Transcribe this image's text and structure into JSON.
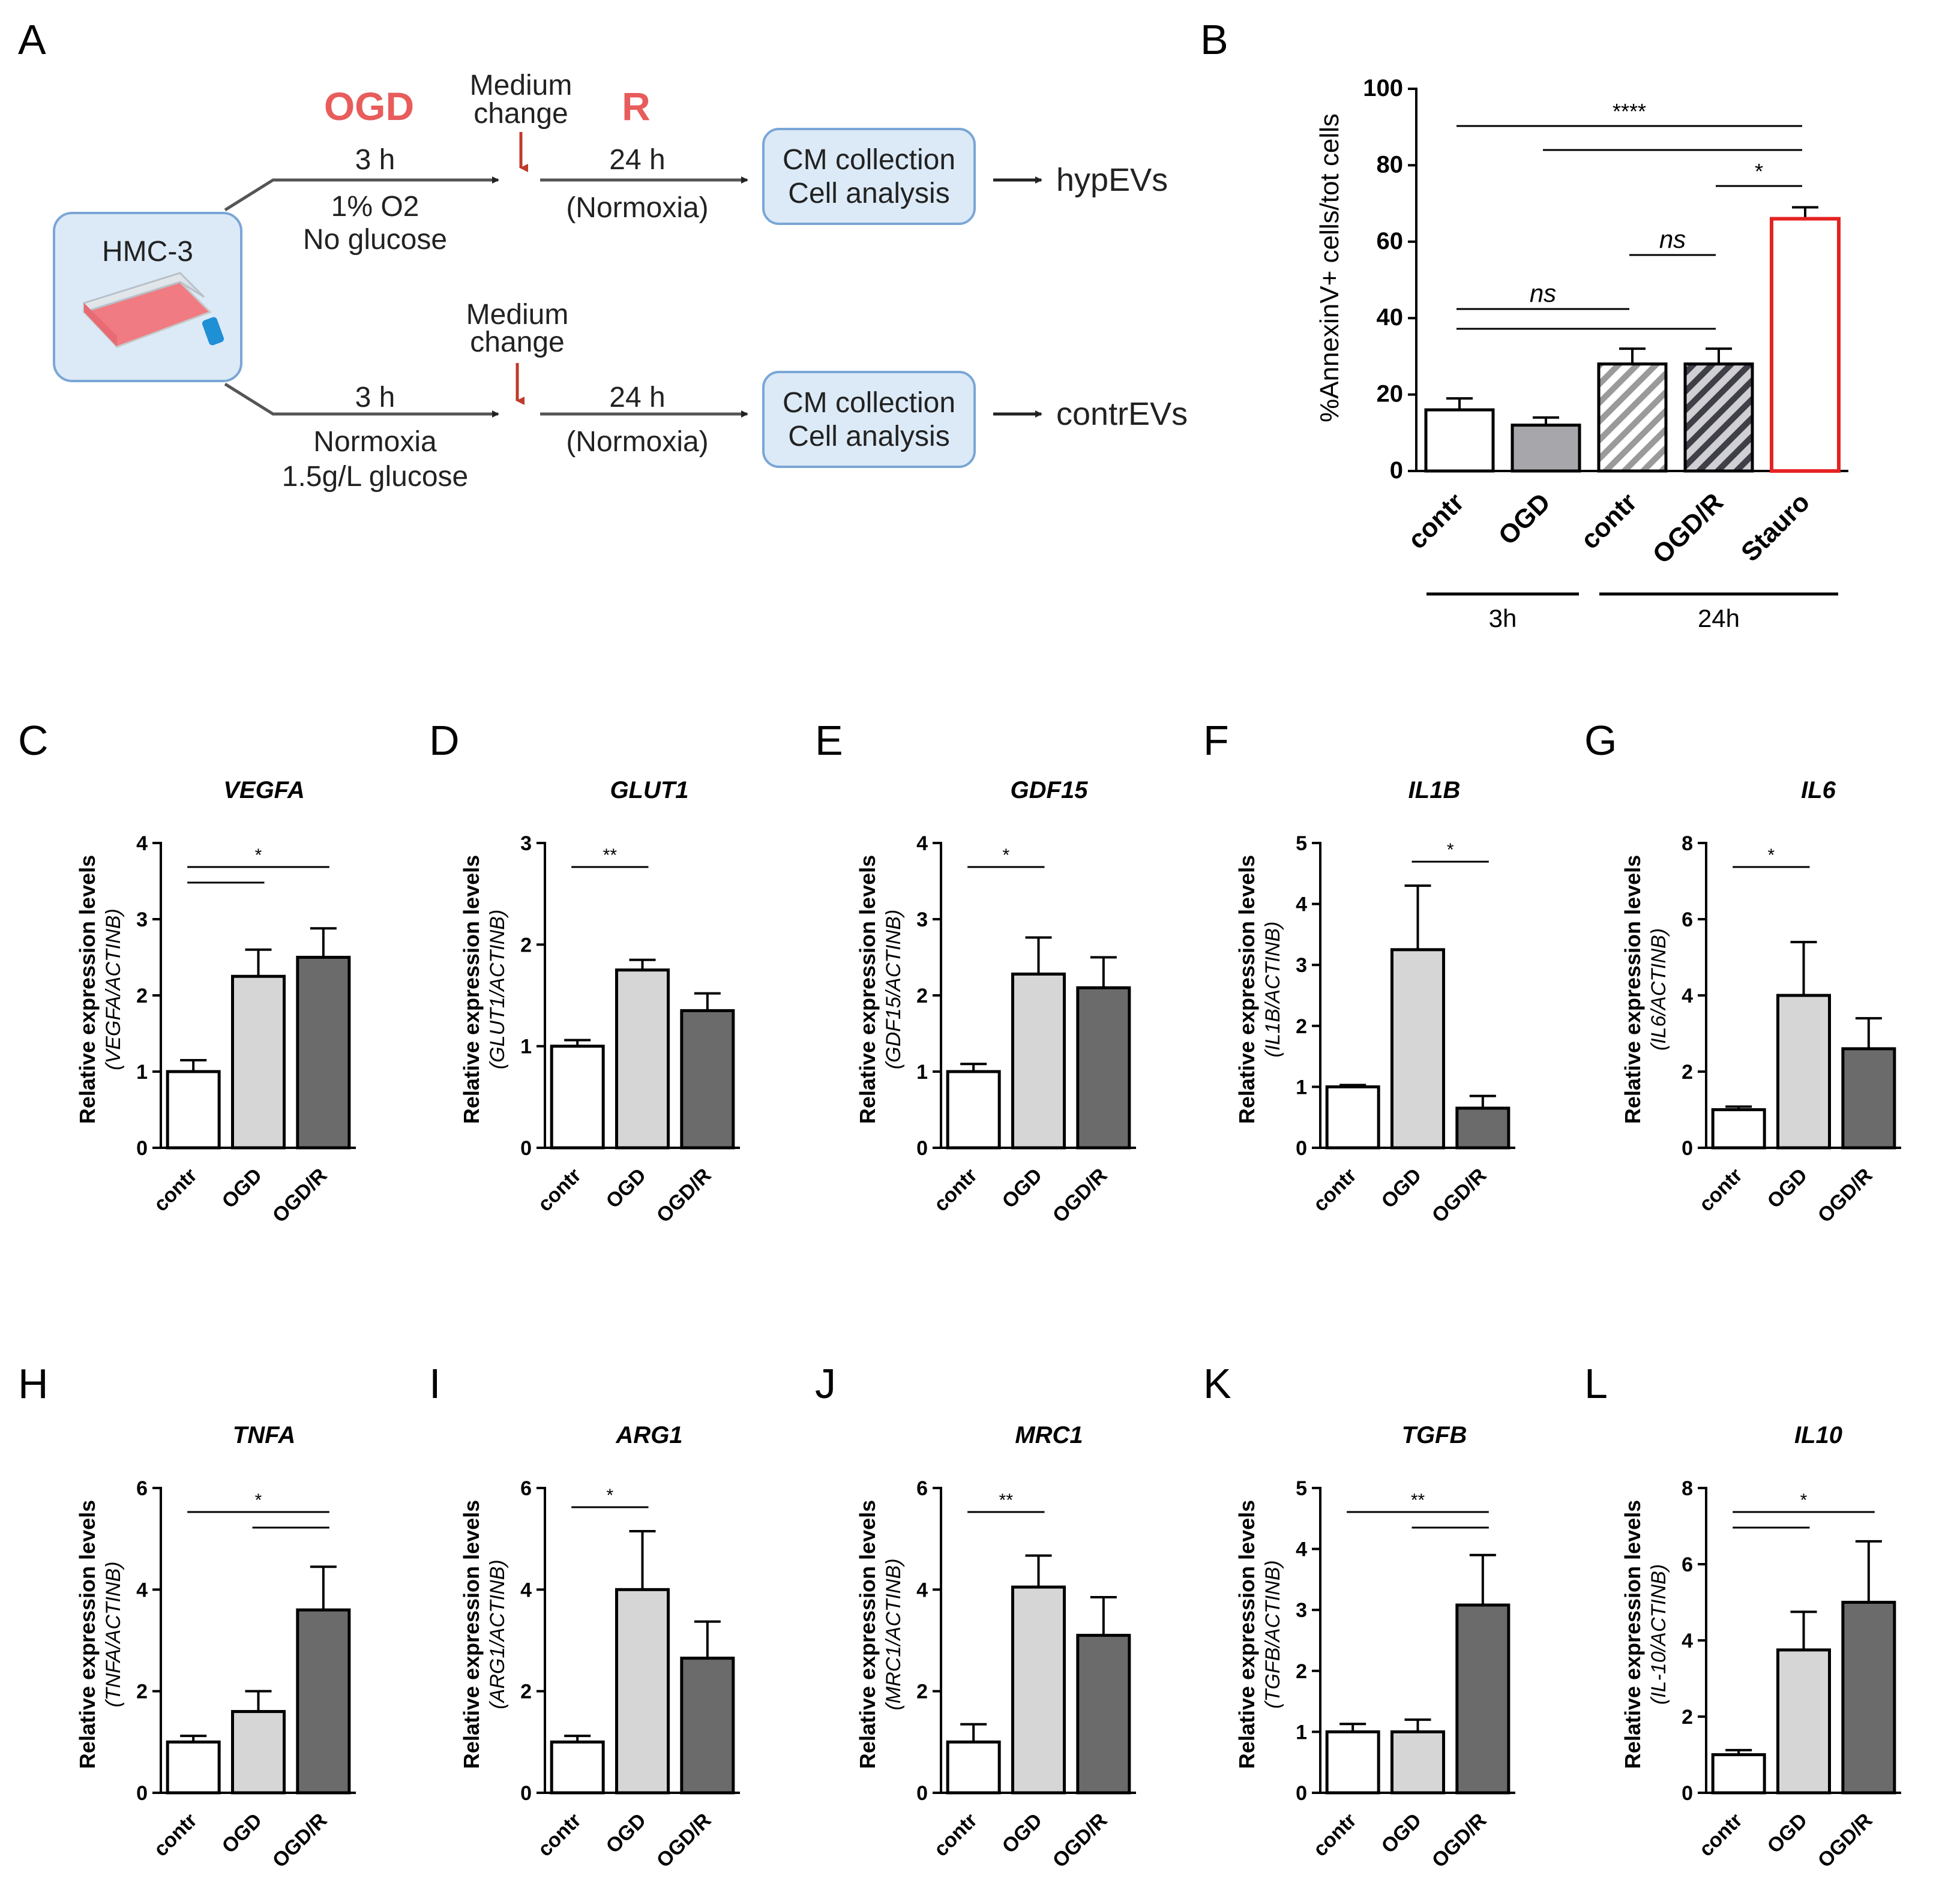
{
  "panel_labels": [
    "A",
    "B",
    "C",
    "D",
    "E",
    "F",
    "G",
    "H",
    "I",
    "J",
    "K",
    "L"
  ],
  "diagram": {
    "cell_line": "HMC-3",
    "top": {
      "phase1": "OGD",
      "medium_change": [
        "Medium",
        "change"
      ],
      "phase2": "R",
      "duration1": "3 h",
      "cond1": [
        "1% O2",
        "No glucose"
      ],
      "duration2": "24 h",
      "cond2": "(Normoxia)",
      "box": [
        "CM collection",
        "Cell analysis"
      ],
      "result": "hypEVs"
    },
    "bottom": {
      "medium_change": [
        "Medium",
        "change"
      ],
      "duration1": "3 h",
      "cond1": [
        "Normoxia",
        "1.5g/L glucose"
      ],
      "duration2": "24 h",
      "cond2": "(Normoxia)",
      "box": [
        "CM collection",
        "Cell analysis"
      ],
      "result": "contrEVs"
    }
  },
  "colors": {
    "white": "#ffffff",
    "light_grey": "#d6d6d6",
    "mid_grey": "#a6a6ab",
    "dark_grey": "#6b6b6b",
    "stauro_red": "#e52222",
    "diagram_red": "#e85c5c",
    "box_fill": "#dceaf7",
    "box_stroke": "#7aa6d6"
  },
  "chart_data": [
    {
      "panel": "B",
      "type": "bar",
      "title": "",
      "ylabel": "%AnnexinV+ cells/tot cells",
      "ylim": [
        0,
        100
      ],
      "yticks": [
        0,
        20,
        40,
        60,
        80,
        100
      ],
      "categories": [
        "contr",
        "OGD",
        "contr",
        "OGD/R",
        "Stauro"
      ],
      "values": [
        16,
        12,
        28,
        28,
        66
      ],
      "errors": [
        3,
        2,
        4,
        4,
        3
      ],
      "groups": [
        {
          "label": "3h",
          "members": [
            0,
            1
          ]
        },
        {
          "label": "24h",
          "members": [
            2,
            3,
            4
          ]
        }
      ],
      "significance": [
        {
          "from": 0,
          "to": 4,
          "label": "****"
        },
        {
          "from": 1,
          "to": 4,
          "label": ""
        },
        {
          "from": 3,
          "to": 4,
          "label": "*"
        },
        {
          "from": 2,
          "to": 3,
          "label": "ns"
        },
        {
          "from": 0,
          "to": 2,
          "label": "ns"
        },
        {
          "from": 0,
          "to": 3,
          "label": ""
        }
      ]
    },
    {
      "panel": "C",
      "type": "bar",
      "title": "VEGFA",
      "ylabel": "Relative expression levels",
      "ylabel2": "(VEGFA/ACTINB)",
      "ylim": [
        0,
        4
      ],
      "yticks": [
        0,
        1,
        2,
        3,
        4
      ],
      "categories": [
        "contr",
        "OGD",
        "OGD/R"
      ],
      "values": [
        1.0,
        2.25,
        2.5
      ],
      "errors": [
        0.15,
        0.35,
        0.38
      ],
      "significance": [
        {
          "from": 0,
          "to": 2,
          "label": "*"
        },
        {
          "from": 0,
          "to": 1,
          "label": ""
        }
      ]
    },
    {
      "panel": "D",
      "type": "bar",
      "title": "GLUT1",
      "ylabel": "Relative expression levels",
      "ylabel2": "(GLUT1/ACTINB)",
      "ylim": [
        0,
        3
      ],
      "yticks": [
        0,
        1,
        2,
        3
      ],
      "categories": [
        "contr",
        "OGD",
        "OGD/R"
      ],
      "values": [
        1.0,
        1.75,
        1.35
      ],
      "errors": [
        0.06,
        0.1,
        0.17
      ],
      "significance": [
        {
          "from": 0,
          "to": 1,
          "label": "**"
        }
      ]
    },
    {
      "panel": "E",
      "type": "bar",
      "title": "GDF15",
      "ylabel": "Relative expression levels",
      "ylabel2": "(GDF15/ACTINB)",
      "ylim": [
        0,
        4
      ],
      "yticks": [
        0,
        1,
        2,
        3,
        4
      ],
      "categories": [
        "contr",
        "OGD",
        "OGD/R"
      ],
      "values": [
        1.0,
        2.28,
        2.1
      ],
      "errors": [
        0.1,
        0.48,
        0.4
      ],
      "significance": [
        {
          "from": 0,
          "to": 1,
          "label": "*"
        }
      ]
    },
    {
      "panel": "F",
      "type": "bar",
      "title": "IL1B",
      "ylabel": "Relative expression levels",
      "ylabel2": "(IL1B/ACTINB)",
      "ylim": [
        0,
        5
      ],
      "yticks": [
        0,
        1,
        2,
        3,
        4,
        5
      ],
      "categories": [
        "contr",
        "OGD",
        "OGD/R"
      ],
      "values": [
        1.0,
        3.25,
        0.65
      ],
      "errors": [
        0.03,
        1.05,
        0.2
      ],
      "significance": [
        {
          "from": 1,
          "to": 2,
          "label": "*"
        }
      ]
    },
    {
      "panel": "G",
      "type": "bar",
      "title": "IL6",
      "ylabel": "Relative expression levels",
      "ylabel2": "(IL6/ACTINB)",
      "ylim": [
        0,
        8
      ],
      "yticks": [
        0,
        2,
        4,
        6,
        8
      ],
      "categories": [
        "contr",
        "OGD",
        "OGD/R"
      ],
      "values": [
        1.0,
        4.0,
        2.6
      ],
      "errors": [
        0.08,
        1.4,
        0.8
      ],
      "significance": [
        {
          "from": 0,
          "to": 1,
          "label": "*"
        }
      ]
    },
    {
      "panel": "H",
      "type": "bar",
      "title": "TNFA",
      "ylabel": "Relative expression levels",
      "ylabel2": "(TNFA/ACTINB)",
      "ylim": [
        0,
        6
      ],
      "yticks": [
        0,
        2,
        4,
        6
      ],
      "categories": [
        "contr",
        "OGD",
        "OGD/R"
      ],
      "values": [
        1.0,
        1.6,
        3.6
      ],
      "errors": [
        0.12,
        0.4,
        0.85
      ],
      "significance": [
        {
          "from": 0,
          "to": 2,
          "label": "*"
        },
        {
          "from": 1,
          "to": 2,
          "label": ""
        }
      ]
    },
    {
      "panel": "I",
      "type": "bar",
      "title": "ARG1",
      "ylabel": "Relative expression levels",
      "ylabel2": "(ARG1/ACTINB)",
      "ylim": [
        0,
        6
      ],
      "yticks": [
        0,
        2,
        4,
        6
      ],
      "categories": [
        "contr",
        "OGD",
        "OGD/R"
      ],
      "values": [
        1.0,
        4.0,
        2.65
      ],
      "errors": [
        0.12,
        1.15,
        0.72
      ],
      "significance": [
        {
          "from": 0,
          "to": 1,
          "label": "*"
        }
      ]
    },
    {
      "panel": "J",
      "type": "bar",
      "title": "MRC1",
      "ylabel": "Relative expression levels",
      "ylabel2": "(MRC1/ACTINB)",
      "ylim": [
        0,
        6
      ],
      "yticks": [
        0,
        2,
        4,
        6
      ],
      "categories": [
        "contr",
        "OGD",
        "OGD/R"
      ],
      "values": [
        1.0,
        4.05,
        3.1
      ],
      "errors": [
        0.35,
        0.62,
        0.75
      ],
      "significance": [
        {
          "from": 0,
          "to": 1,
          "label": "**"
        }
      ]
    },
    {
      "panel": "K",
      "type": "bar",
      "title": "TGFB",
      "ylabel": "Relative expression levels",
      "ylabel2": "(TGFB/ACTINB)",
      "ylim": [
        0,
        5
      ],
      "yticks": [
        0,
        1,
        2,
        3,
        4,
        5
      ],
      "categories": [
        "contr",
        "OGD",
        "OGD/R"
      ],
      "values": [
        1.0,
        1.0,
        3.08
      ],
      "errors": [
        0.13,
        0.2,
        0.82
      ],
      "significance": [
        {
          "from": 0,
          "to": 2,
          "label": "**"
        },
        {
          "from": 1,
          "to": 2,
          "label": ""
        }
      ]
    },
    {
      "panel": "L",
      "type": "bar",
      "title": "IL10",
      "ylabel": "Relative expression levels",
      "ylabel2": "(IL-10/ACTINB)",
      "ylim": [
        0,
        8
      ],
      "yticks": [
        0,
        2,
        4,
        6,
        8
      ],
      "categories": [
        "contr",
        "OGD",
        "OGD/R"
      ],
      "values": [
        1.0,
        3.75,
        5.0
      ],
      "errors": [
        0.12,
        1.0,
        1.6
      ],
      "significance": [
        {
          "from": 0,
          "to": 2,
          "label": "*"
        },
        {
          "from": 0,
          "to": 1,
          "label": ""
        }
      ]
    }
  ]
}
